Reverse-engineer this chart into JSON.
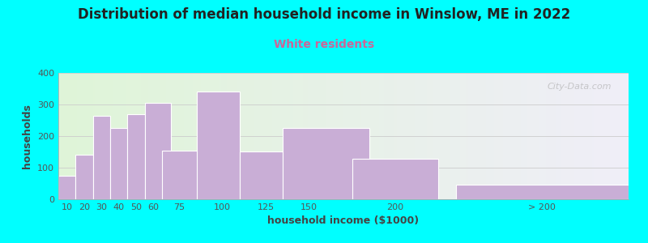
{
  "title": "Distribution of median household income in Winslow, ME in 2022",
  "subtitle": "White residents",
  "xlabel": "household income ($1000)",
  "ylabel": "households",
  "background_color": "#00FFFF",
  "bar_color": "#c9aed6",
  "bar_edge_color": "#ffffff",
  "values": [
    75,
    140,
    265,
    225,
    270,
    305,
    155,
    340,
    152,
    225,
    127,
    45
  ],
  "bar_widths": [
    10,
    10,
    10,
    10,
    10,
    15,
    25,
    25,
    25,
    50,
    50,
    100
  ],
  "bar_lefts": [
    5,
    15,
    25,
    35,
    45,
    55,
    65,
    85,
    110,
    135,
    175,
    235
  ],
  "xlim": [
    5,
    335
  ],
  "ylim": [
    0,
    400
  ],
  "yticks": [
    0,
    100,
    200,
    300,
    400
  ],
  "xtick_positions": [
    10,
    20,
    30,
    40,
    50,
    60,
    75,
    100,
    125,
    150,
    200,
    285
  ],
  "xtick_labels": [
    "10",
    "20",
    "30",
    "40",
    "50",
    "60",
    "75",
    "100",
    "125",
    "150",
    "200",
    "> 200"
  ],
  "title_fontsize": 12,
  "subtitle_fontsize": 10,
  "axis_label_fontsize": 9,
  "tick_fontsize": 8,
  "watermark_text": "City-Data.com",
  "grid_color": "#cccccc",
  "subtitle_color": "#cc6699",
  "title_color": "#222222",
  "tick_color": "#555555",
  "label_color": "#444444",
  "gradient_left": "#dff5d8",
  "gradient_right": "#f0eef8"
}
